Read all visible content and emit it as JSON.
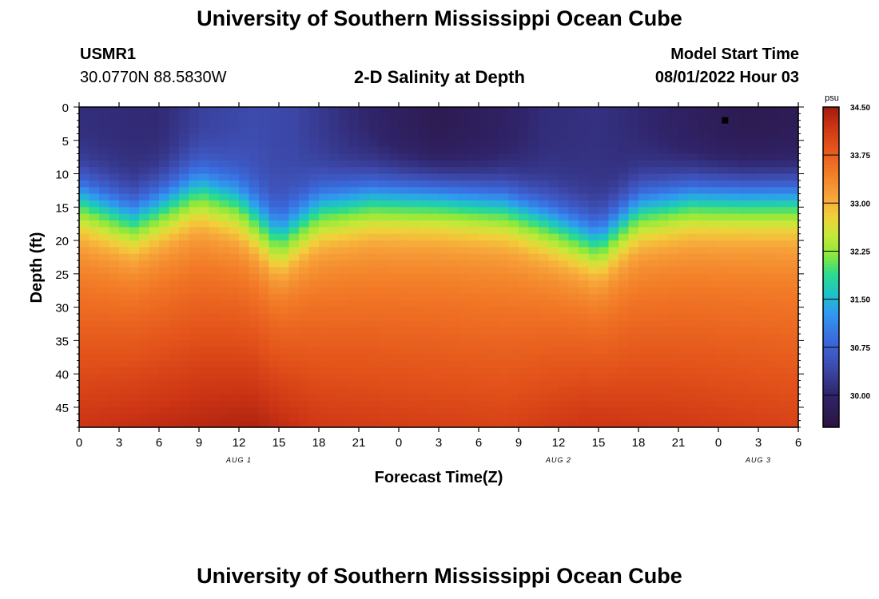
{
  "page": {
    "top_title": "University of Southern Mississippi Ocean Cube",
    "bottom_title": "University of Southern Mississippi Ocean Cube",
    "station_id": "USMR1",
    "station_coords": "30.0770N  88.5830W",
    "center_title": "2-D Salinity at Depth",
    "model_start_label": "Model Start Time",
    "model_start_value": "08/01/2022 Hour 03"
  },
  "chart_data": {
    "type": "heatmap",
    "title": "2-D Salinity at Depth",
    "xlabel": "Forecast Time(Z)",
    "ylabel": "Depth (ft)",
    "x_range_hours": [
      0,
      54
    ],
    "y_range_ft": [
      0,
      48
    ],
    "x_ticks": [
      {
        "h": 0,
        "label": "0"
      },
      {
        "h": 3,
        "label": "3"
      },
      {
        "h": 6,
        "label": "6"
      },
      {
        "h": 9,
        "label": "9"
      },
      {
        "h": 12,
        "label": "12"
      },
      {
        "h": 15,
        "label": "15"
      },
      {
        "h": 18,
        "label": "18"
      },
      {
        "h": 21,
        "label": "21"
      },
      {
        "h": 24,
        "label": "0"
      },
      {
        "h": 27,
        "label": "3"
      },
      {
        "h": 30,
        "label": "6"
      },
      {
        "h": 33,
        "label": "9"
      },
      {
        "h": 36,
        "label": "12"
      },
      {
        "h": 39,
        "label": "15"
      },
      {
        "h": 42,
        "label": "18"
      },
      {
        "h": 45,
        "label": "21"
      },
      {
        "h": 48,
        "label": "0"
      },
      {
        "h": 51,
        "label": "3"
      },
      {
        "h": 54,
        "label": "6"
      }
    ],
    "date_labels": [
      {
        "h": 12,
        "label": "AUG 1"
      },
      {
        "h": 36,
        "label": "AUG 2"
      },
      {
        "h": 51,
        "label": "AUG 3"
      }
    ],
    "y_ticks": [
      0,
      5,
      10,
      15,
      20,
      25,
      30,
      35,
      40,
      45
    ],
    "colorbar": {
      "unit": "psu",
      "min": 29.5,
      "max": 34.5,
      "tick_values": [
        34.5,
        33.75,
        33.0,
        32.25,
        31.5,
        30.75,
        30.0
      ],
      "tick_labels": [
        "34.50",
        "33.75",
        "33.00",
        "32.25",
        "31.50",
        "30.75",
        "30.00"
      ],
      "stops": [
        {
          "v": 29.5,
          "c": "#2b1340"
        },
        {
          "v": 30.0,
          "c": "#30246a"
        },
        {
          "v": 30.5,
          "c": "#3e4fb5"
        },
        {
          "v": 30.9,
          "c": "#3a6ee0"
        },
        {
          "v": 31.3,
          "c": "#2f9cf0"
        },
        {
          "v": 31.6,
          "c": "#1ec4c4"
        },
        {
          "v": 31.9,
          "c": "#2edc8a"
        },
        {
          "v": 32.2,
          "c": "#8ee83a"
        },
        {
          "v": 32.5,
          "c": "#c6e83a"
        },
        {
          "v": 32.8,
          "c": "#f2cf3a"
        },
        {
          "v": 33.1,
          "c": "#f7a43a"
        },
        {
          "v": 33.5,
          "c": "#f27826"
        },
        {
          "v": 33.9,
          "c": "#e2511a"
        },
        {
          "v": 34.2,
          "c": "#cc3414"
        },
        {
          "v": 34.5,
          "c": "#a01c0e"
        }
      ]
    },
    "surface_salinity_psu": [
      {
        "h": 0,
        "v": 30.1
      },
      {
        "h": 6,
        "v": 30.05
      },
      {
        "h": 9,
        "v": 30.3
      },
      {
        "h": 13,
        "v": 30.45
      },
      {
        "h": 16,
        "v": 30.4
      },
      {
        "h": 20,
        "v": 30.1
      },
      {
        "h": 24,
        "v": 29.85
      },
      {
        "h": 27,
        "v": 29.7
      },
      {
        "h": 31,
        "v": 29.85
      },
      {
        "h": 35,
        "v": 30.1
      },
      {
        "h": 39,
        "v": 30.15
      },
      {
        "h": 43,
        "v": 30.0
      },
      {
        "h": 47,
        "v": 29.8
      },
      {
        "h": 50,
        "v": 29.7
      },
      {
        "h": 54,
        "v": 29.75
      }
    ],
    "halocline_depth_ft": [
      {
        "h": 0,
        "d": 13.5
      },
      {
        "h": 4,
        "d": 16.5
      },
      {
        "h": 9,
        "d": 12.0
      },
      {
        "h": 12,
        "d": 14.0
      },
      {
        "h": 15,
        "d": 19.5
      },
      {
        "h": 18,
        "d": 15.0
      },
      {
        "h": 22,
        "d": 13.5
      },
      {
        "h": 27,
        "d": 13.5
      },
      {
        "h": 32,
        "d": 14.5
      },
      {
        "h": 36,
        "d": 17.5
      },
      {
        "h": 39,
        "d": 20.0
      },
      {
        "h": 42,
        "d": 15.0
      },
      {
        "h": 46,
        "d": 13.5
      },
      {
        "h": 54,
        "d": 13.5
      }
    ],
    "bottom_salinity_psu": [
      {
        "h": 0,
        "v": 34.2
      },
      {
        "h": 9,
        "v": 34.35
      },
      {
        "h": 13,
        "v": 34.4
      },
      {
        "h": 18,
        "v": 34.15
      },
      {
        "h": 24,
        "v": 34.1
      },
      {
        "h": 32,
        "v": 34.05
      },
      {
        "h": 38,
        "v": 34.2
      },
      {
        "h": 45,
        "v": 34.15
      },
      {
        "h": 54,
        "v": 34.05
      }
    ],
    "marker": {
      "h": 48.5,
      "d": 2
    }
  }
}
